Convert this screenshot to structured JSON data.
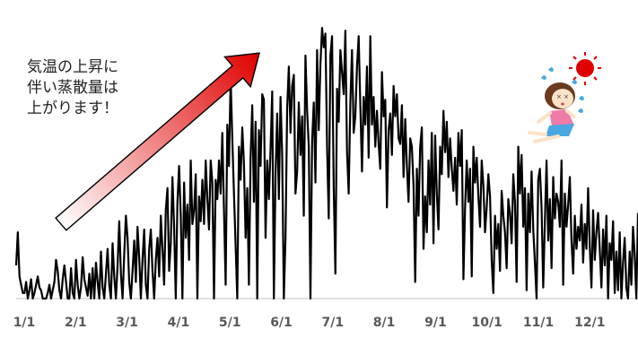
{
  "chart_data": {
    "type": "line",
    "x_tick_labels": [
      "1/1",
      "2/1",
      "3/1",
      "4/1",
      "5/1",
      "6/1",
      "7/1",
      "8/1",
      "9/1",
      "10/1",
      "11/1",
      "12/1"
    ],
    "series": [
      {
        "values": [
          0.12,
          0.24,
          0.08,
          0.05,
          0.02,
          0.02,
          0.06,
          0.0,
          0.03,
          0.07,
          0.0,
          0.02,
          0.05,
          0.08,
          0.04,
          0.03,
          0.0,
          0.0,
          0.0,
          0.02,
          0.05,
          0.0,
          0.03,
          0.06,
          0.14,
          0.1,
          0.03,
          0.0,
          0.07,
          0.12,
          0.06,
          0.0,
          0.0,
          0.11,
          0.02,
          0.0,
          0.14,
          0.05,
          0.0,
          0.04,
          0.15,
          0.07,
          0.04,
          0.01,
          0.09,
          0.0,
          0.11,
          0.0,
          0.13,
          0.06,
          0.0,
          0.17,
          0.04,
          0.0,
          0.09,
          0.18,
          0.05,
          0.0,
          0.2,
          0.08,
          0.0,
          0.12,
          0.28,
          0.09,
          0.0,
          0.16,
          0.3,
          0.22,
          0.06,
          0.0,
          0.1,
          0.21,
          0.06,
          0.26,
          0.15,
          0.0,
          0.14,
          0.25,
          0.05,
          0.0,
          0.18,
          0.25,
          0.1,
          0.0,
          0.14,
          0.22,
          0.08,
          0.3,
          0.18,
          0.05,
          0.32,
          0.4,
          0.1,
          0.2,
          0.44,
          0.26,
          0.0,
          0.35,
          0.48,
          0.3,
          0.0,
          0.42,
          0.22,
          0.34,
          0.14,
          0.5,
          0.27,
          0.32,
          0.45,
          0.0,
          0.37,
          0.28,
          0.43,
          0.27,
          0.5,
          0.36,
          0.25,
          0.5,
          0.42,
          0.0,
          0.43,
          0.36,
          0.5,
          0.38,
          0.6,
          0.32,
          0.05,
          0.63,
          0.48,
          0.8,
          0.58,
          0.38,
          0.19,
          0.0,
          0.55,
          0.43,
          0.62,
          0.49,
          0.22,
          0.4,
          0.05,
          0.51,
          0.7,
          0.35,
          0.64,
          0.0,
          0.61,
          0.48,
          0.74,
          0.72,
          0.22,
          0.5,
          0.36,
          0.54,
          0.75,
          0.0,
          0.45,
          0.67,
          0.36,
          0.73,
          0.52,
          0.0,
          0.22,
          0.69,
          0.84,
          0.6,
          0.77,
          0.81,
          0.38,
          0.46,
          0.71,
          0.52,
          0.66,
          0.3,
          0.88,
          0.68,
          0.55,
          0.0,
          0.57,
          0.71,
          0.42,
          0.9,
          0.61,
          0.85,
          0.98,
          0.91,
          0.96,
          0.55,
          0.29,
          0.88,
          0.95,
          0.4,
          0.09,
          0.76,
          0.64,
          0.9,
          0.82,
          0.74,
          0.97,
          0.53,
          0.38,
          0.71,
          0.9,
          0.6,
          0.66,
          0.84,
          0.95,
          0.7,
          0.46,
          0.73,
          0.63,
          0.84,
          0.51,
          0.95,
          0.63,
          0.73,
          0.55,
          0.68,
          0.56,
          0.47,
          0.82,
          0.66,
          0.72,
          0.33,
          0.61,
          0.67,
          0.52,
          0.77,
          0.66,
          0.74,
          0.58,
          0.56,
          0.7,
          0.44,
          0.65,
          0.48,
          0.35,
          0.58,
          0.55,
          0.41,
          0.06,
          0.47,
          0.3,
          0.55,
          0.62,
          0.18,
          0.37,
          0.24,
          0.5,
          0.34,
          0.6,
          0.2,
          0.59,
          0.38,
          0.25,
          0.55,
          0.45,
          0.68,
          0.53,
          0.64,
          0.44,
          0.58,
          0.47,
          0.39,
          0.51,
          0.34,
          0.6,
          0.48,
          0.61,
          0.07,
          0.33,
          0.5,
          0.35,
          0.47,
          0.08,
          0.55,
          0.42,
          0.51,
          0.37,
          0.26,
          0.5,
          0.41,
          0.24,
          0.33,
          0.45,
          0.37,
          0.14,
          0.02,
          0.3,
          0.18,
          0.27,
          0.1,
          0.39,
          0.3,
          0.24,
          0.11,
          0.36,
          0.31,
          0.2,
          0.45,
          0.35,
          0.06,
          0.55,
          0.38,
          0.52,
          0.26,
          0.4,
          0.03,
          0.38,
          0.24,
          0.46,
          0.25,
          0.13,
          0.0,
          0.43,
          0.47,
          0.33,
          0.04,
          0.28,
          0.5,
          0.21,
          0.36,
          0.11,
          0.44,
          0.29,
          0.38,
          0.35,
          0.26,
          0.5,
          0.05,
          0.38,
          0.26,
          0.34,
          0.44,
          0.21,
          0.09,
          0.3,
          0.18,
          0.26,
          0.21,
          0.34,
          0.13,
          0.27,
          0.18,
          0.4,
          0.19,
          0.04,
          0.32,
          0.14,
          0.24,
          0.31,
          0.18,
          0.04,
          0.25,
          0.12,
          0.3,
          0.0,
          0.2,
          0.14,
          0.28,
          0.02,
          0.17,
          0.03,
          0.24,
          0.0,
          0.13,
          0.22,
          0.04,
          0.0,
          0.17,
          0.05,
          0.26,
          0.16,
          0.0,
          0.31
        ]
      }
    ],
    "ylim": [
      0,
      1
    ],
    "grid": false,
    "annotation": {
      "lines": [
        "気温の上昇に",
        "伴い蒸散量は",
        "上がります！"
      ]
    },
    "colors": {
      "line": "#000000",
      "arrow_head": "#e00000",
      "arrow_tail": "#ffffff",
      "arrow_outline": "#000000"
    },
    "icon": "fainting-girl-in-heat-icon"
  }
}
